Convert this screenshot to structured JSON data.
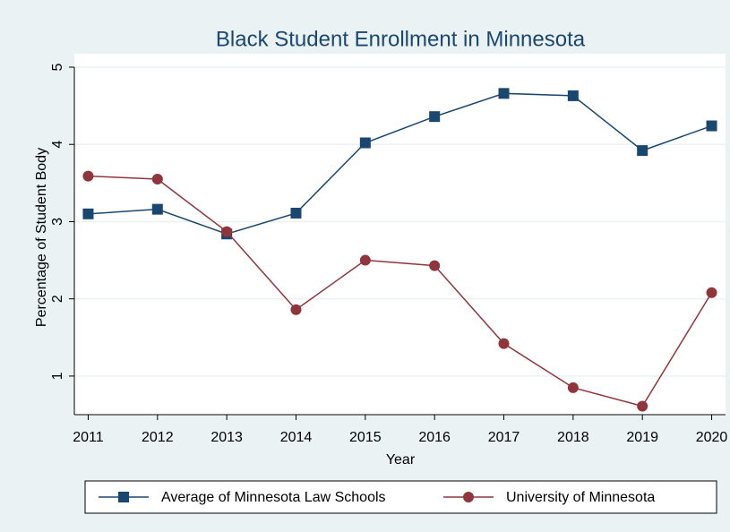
{
  "chart_data": {
    "type": "line",
    "title": "Black Student Enrollment in Minnesota",
    "x_label": "Year",
    "y_label": "Percentage of Student Body",
    "x": [
      2011,
      2012,
      2013,
      2014,
      2015,
      2016,
      2017,
      2018,
      2019,
      2020
    ],
    "series": [
      {
        "name": "Average of Minnesota Law Schools",
        "color": "#1a476f",
        "marker": "square",
        "values": [
          3.1,
          3.16,
          2.84,
          3.11,
          4.02,
          4.36,
          4.66,
          4.63,
          3.92,
          4.24
        ]
      },
      {
        "name": "University of Minnesota",
        "color": "#90353b",
        "marker": "circle",
        "values": [
          3.59,
          3.55,
          2.87,
          1.86,
          2.5,
          2.43,
          1.42,
          0.85,
          0.61,
          2.08
        ]
      }
    ],
    "xlim": [
      2010.8,
      2020.2
    ],
    "xticks": [
      2011,
      2012,
      2013,
      2014,
      2015,
      2016,
      2017,
      2018,
      2019,
      2020
    ],
    "ylim": [
      0.5,
      5
    ],
    "yticks": [
      1,
      2,
      3,
      4,
      5
    ],
    "grid": true,
    "legend": "bottom"
  }
}
